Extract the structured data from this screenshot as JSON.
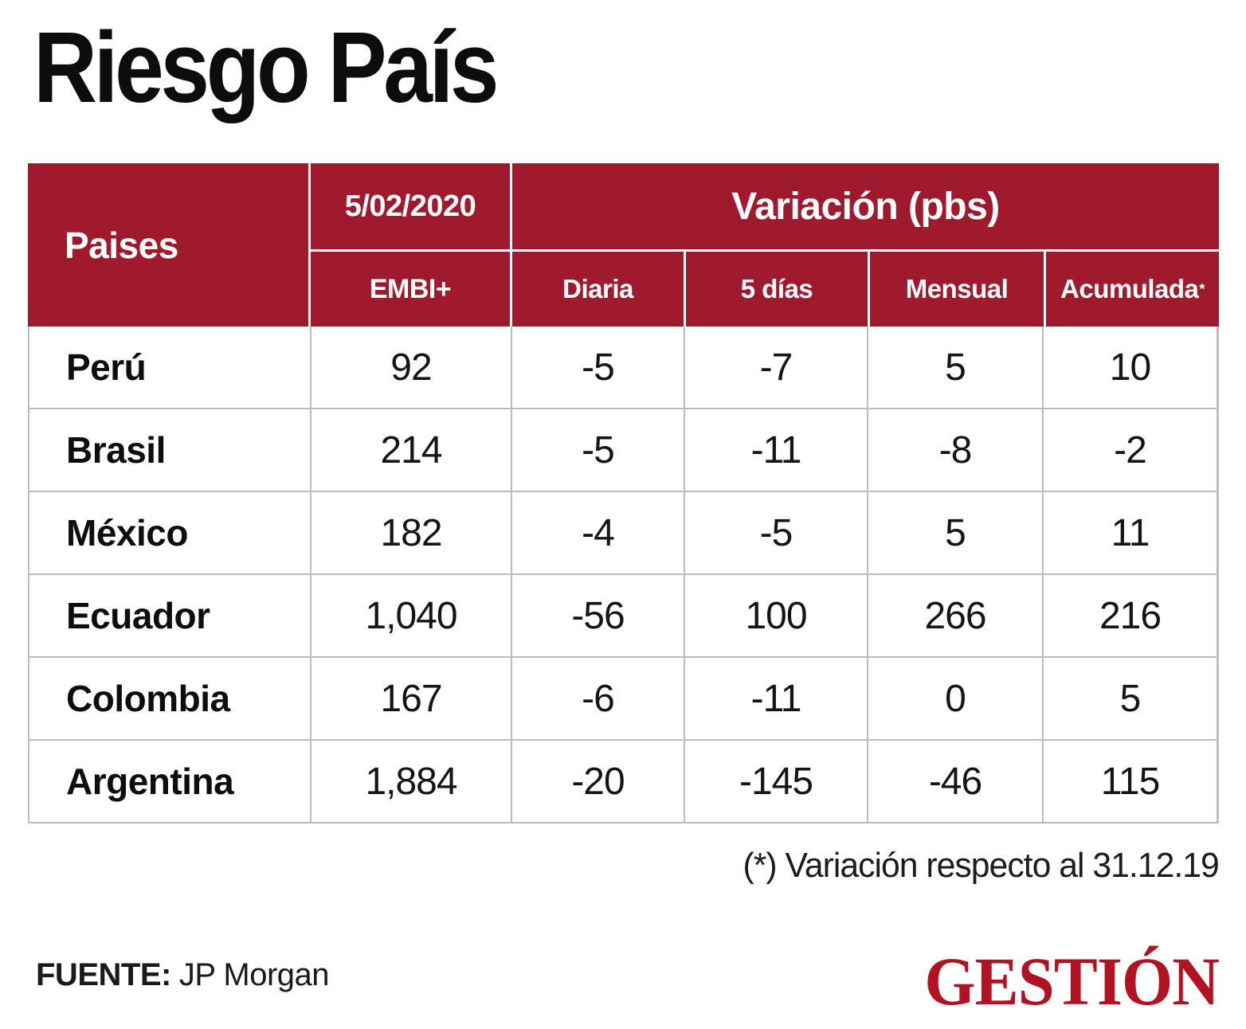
{
  "colors": {
    "header_red": "#A01A2E",
    "logo_red": "#B11322",
    "grid_gray": "#bcbcbc",
    "text_black": "#111111"
  },
  "chart_data": {
    "type": "table",
    "title": "Riesgo País",
    "header": {
      "countries_label": "Paises",
      "date_label": "5/02/2020",
      "date_sub_label": "EMBI+",
      "variation_group_label": "Variación (pbs)",
      "variation_columns": [
        "Diaria",
        "5 días",
        "Mensual",
        "Acumulada"
      ],
      "acumulada_marker": "*"
    },
    "rows": [
      {
        "country": "Perú",
        "embi": "92",
        "diaria": "-5",
        "dias5": "-7",
        "mensual": "5",
        "acumulada": "10"
      },
      {
        "country": "Brasil",
        "embi": "214",
        "diaria": "-5",
        "dias5": "-11",
        "mensual": "-8",
        "acumulada": "-2"
      },
      {
        "country": "México",
        "embi": "182",
        "diaria": "-4",
        "dias5": "-5",
        "mensual": "5",
        "acumulada": "11"
      },
      {
        "country": "Ecuador",
        "embi": "1,040",
        "diaria": "-56",
        "dias5": "100",
        "mensual": "266",
        "acumulada": "216"
      },
      {
        "country": "Colombia",
        "embi": "167",
        "diaria": "-6",
        "dias5": "-11",
        "mensual": "0",
        "acumulada": "5"
      },
      {
        "country": "Argentina",
        "embi": "1,884",
        "diaria": "-20",
        "dias5": "-145",
        "mensual": "-46",
        "acumulada": "115"
      }
    ],
    "footnote": "(*) Variación respecto al 31.12.19",
    "source_label": "FUENTE:",
    "source": "JP Morgan",
    "brand": "GESTIÓN"
  }
}
